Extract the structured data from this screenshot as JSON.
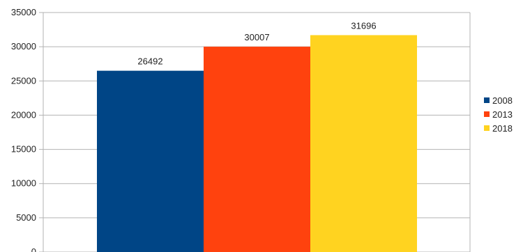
{
  "chart_data": {
    "type": "bar",
    "series": [
      {
        "name": "2008",
        "value": 26492,
        "color": "#004586"
      },
      {
        "name": "2013",
        "value": 30007,
        "color": "#ff420e"
      },
      {
        "name": "2018",
        "value": 31696,
        "color": "#ffd320"
      }
    ],
    "y_ticks": [
      "0",
      "5000",
      "10000",
      "15000",
      "20000",
      "25000",
      "30000",
      "35000"
    ],
    "ylim": [
      0,
      35000
    ],
    "grid": true,
    "legend_position": "right"
  }
}
